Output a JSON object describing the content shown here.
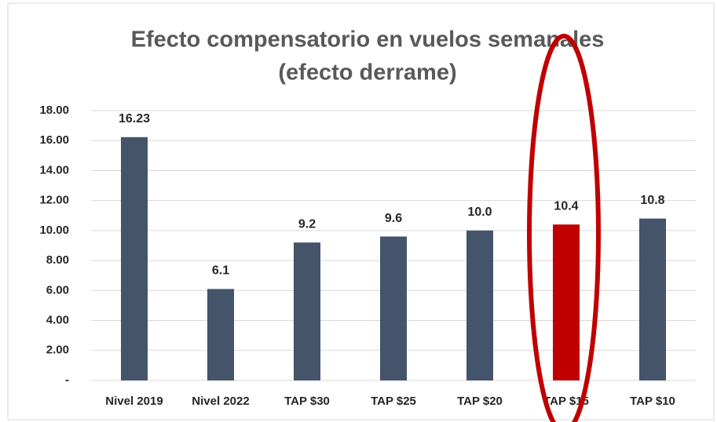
{
  "chart_data": {
    "type": "bar",
    "title": [
      "Efecto compensatorio en vuelos semanales",
      "(efecto derrame)"
    ],
    "categories": [
      "Nivel 2019",
      "Nivel 2022",
      "TAP $30",
      "TAP $25",
      "TAP $20",
      "TAP $15",
      "TAP $10"
    ],
    "values": [
      16.23,
      6.1,
      9.2,
      9.6,
      10.0,
      10.4,
      10.8
    ],
    "value_labels": [
      "16.23",
      "6.1",
      "9.2",
      "9.6",
      "10.0",
      "10.4",
      "10.8"
    ],
    "colors": [
      "#44546a",
      "#44546a",
      "#44546a",
      "#44546a",
      "#44546a",
      "#c00000",
      "#44546a"
    ],
    "ylim": [
      0,
      18
    ],
    "yticks": [
      {
        "value": 0,
        "label": "-"
      },
      {
        "value": 2,
        "label": "2.00"
      },
      {
        "value": 4,
        "label": "4.00"
      },
      {
        "value": 6,
        "label": "6.00"
      },
      {
        "value": 8,
        "label": "8.00"
      },
      {
        "value": 10,
        "label": "10.00"
      },
      {
        "value": 12,
        "label": "12.00"
      },
      {
        "value": 14,
        "label": "14.00"
      },
      {
        "value": 16,
        "label": "16.00"
      },
      {
        "value": 18,
        "label": "18.00"
      }
    ],
    "grid": true
  }
}
